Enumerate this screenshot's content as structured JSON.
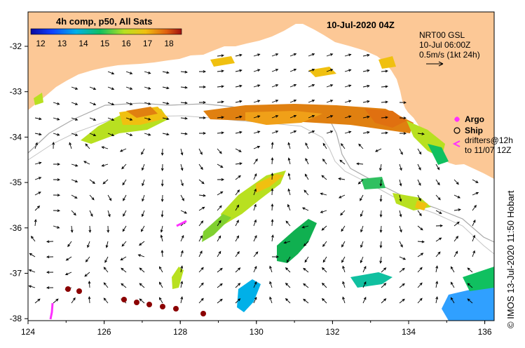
{
  "title_left": "4h comp, p50, All Sats",
  "title_right": "10-Jul-2020 04Z",
  "colorbar": {
    "ticks": [
      "12",
      "13",
      "14",
      "15",
      "16",
      "17",
      "18"
    ],
    "colors": [
      "#0a0aa0",
      "#1040ff",
      "#00b0e8",
      "#10c060",
      "#b8e020",
      "#f0c010",
      "#e06010",
      "#a01010"
    ]
  },
  "model_info": {
    "line1": "NRT00 GSL",
    "line2": "10-Jul 06:00Z",
    "line3": "0.5m/s (1kt 24h)"
  },
  "legend": {
    "argo": "Argo",
    "ship": "Ship",
    "drifters_line1": "drifters@12h",
    "drifters_line2": "to 11/07 12Z"
  },
  "axes": {
    "lon_ticks": [
      "124",
      "126",
      "128",
      "130",
      "132",
      "134",
      "136"
    ],
    "lat_ticks": [
      "-32",
      "-33",
      "-34",
      "-35",
      "-36",
      "-37",
      "-38"
    ]
  },
  "credit": "© IMOS 13-Jul-2020 11:50 Hobart",
  "colors": {
    "land": "#fcc896",
    "ocean": "#ffffff",
    "argo": "#ff30ff",
    "floats": "#8b0000",
    "shelf": "#a8a8a8"
  }
}
